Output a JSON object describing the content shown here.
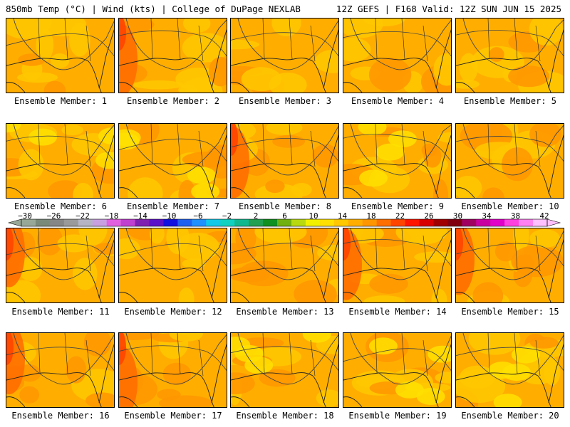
{
  "header": {
    "title_left": "850mb Temp (°C) | Wind (kts) | College of DuPage NEXLAB",
    "title_right": "12Z GEFS | F168 Valid: 12Z SUN JUN 15 2025"
  },
  "panels": [
    {
      "label": "Ensemble Member: 1"
    },
    {
      "label": "Ensemble Member: 2"
    },
    {
      "label": "Ensemble Member: 3"
    },
    {
      "label": "Ensemble Member: 4"
    },
    {
      "label": "Ensemble Member: 5"
    },
    {
      "label": "Ensemble Member: 6"
    },
    {
      "label": "Ensemble Member: 7"
    },
    {
      "label": "Ensemble Member: 8"
    },
    {
      "label": "Ensemble Member: 9"
    },
    {
      "label": "Ensemble Member: 10"
    },
    {
      "label": "Ensemble Member: 11"
    },
    {
      "label": "Ensemble Member: 12"
    },
    {
      "label": "Ensemble Member: 13"
    },
    {
      "label": "Ensemble Member: 14"
    },
    {
      "label": "Ensemble Member: 15"
    },
    {
      "label": "Ensemble Member: 16"
    },
    {
      "label": "Ensemble Member: 17"
    },
    {
      "label": "Ensemble Member: 18"
    },
    {
      "label": "Ensemble Member: 19"
    },
    {
      "label": "Ensemble Member: 20"
    }
  ],
  "colorbar": {
    "labels": [
      "−30",
      "−26",
      "−22",
      "−18",
      "−14",
      "−10",
      "−6",
      "−2",
      "2",
      "6",
      "10",
      "14",
      "18",
      "22",
      "26",
      "30",
      "34",
      "38",
      "42"
    ],
    "colors": [
      "#98a898",
      "#7a8a7a",
      "#868686",
      "#9a9a9a",
      "#b4b4c4",
      "#c8a0e0",
      "#e060e0",
      "#c040d0",
      "#8020b0",
      "#5a10c8",
      "#1010e0",
      "#2060f0",
      "#2090ff",
      "#10c8e8",
      "#10d0c0",
      "#10b890",
      "#20a050",
      "#109020",
      "#70b010",
      "#b8d810",
      "#f0f000",
      "#ffe000",
      "#ffc800",
      "#ffae00",
      "#ff9600",
      "#ff6e00",
      "#ff4400",
      "#ff1400",
      "#d80000",
      "#a00000",
      "#800010",
      "#a00060",
      "#c800a0",
      "#e000c8",
      "#ff40e0",
      "#ff80f0",
      "#ffc0ff"
    ]
  }
}
